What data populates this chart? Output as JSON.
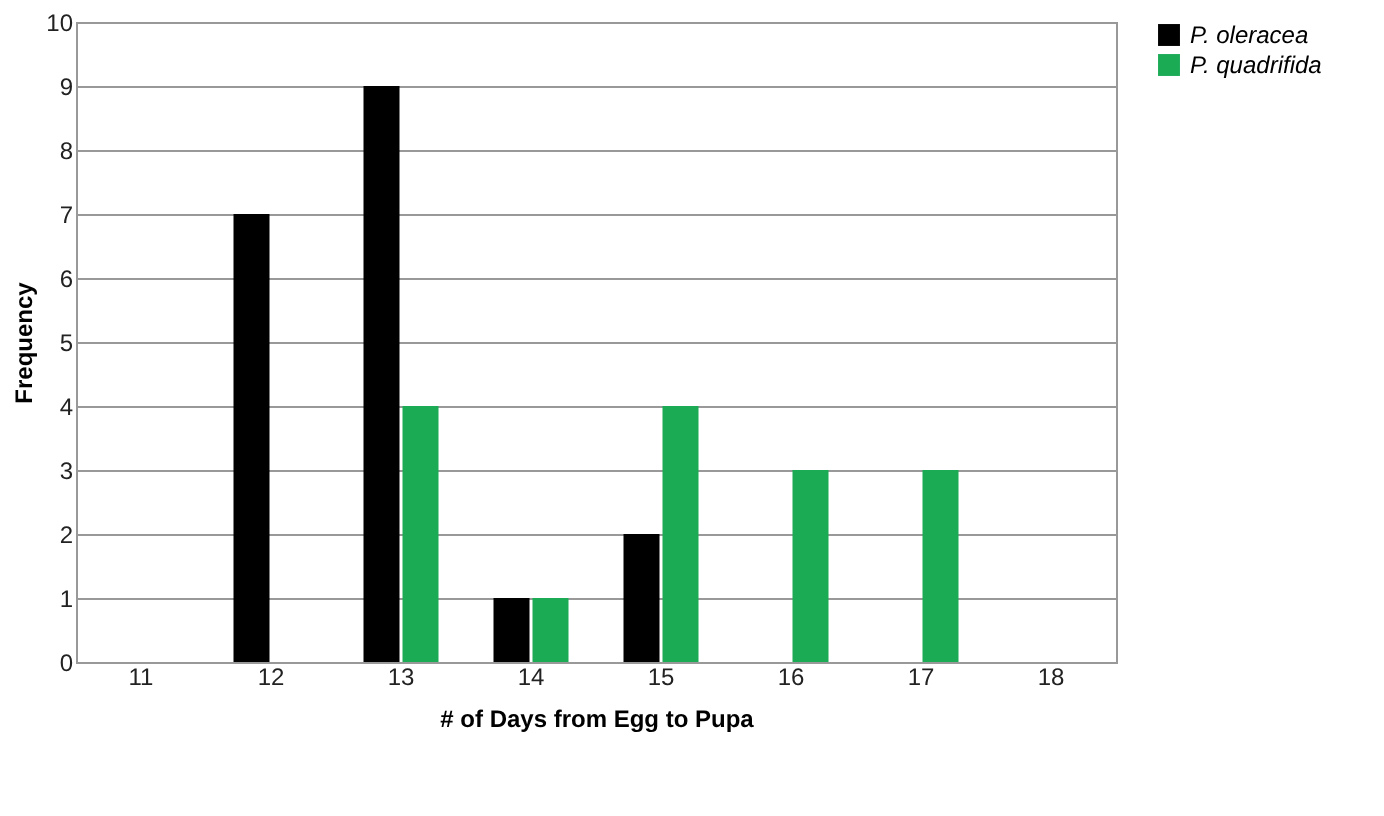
{
  "chart_data": {
    "type": "bar",
    "xlabel": "# of Days from Egg to Pupa",
    "ylabel": "Frequency",
    "categories": [
      "11",
      "12",
      "13",
      "14",
      "15",
      "16",
      "17",
      "18"
    ],
    "series": [
      {
        "name": "P. oleracea",
        "color": "#000000",
        "values": [
          0,
          7,
          9,
          1,
          2,
          0,
          0,
          0
        ]
      },
      {
        "name": "P. quadrifida",
        "color": "#1bab55",
        "values": [
          0,
          0,
          4,
          1,
          4,
          3,
          3,
          0
        ]
      }
    ],
    "ylim": [
      0,
      10
    ],
    "yticks": [
      0,
      1,
      2,
      3,
      4,
      5,
      6,
      7,
      8,
      9,
      10
    ],
    "grid": "y",
    "legend": "right"
  }
}
